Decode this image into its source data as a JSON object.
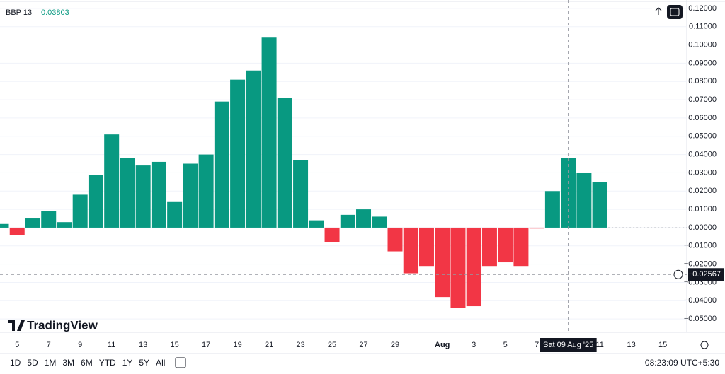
{
  "chart_data": {
    "type": "bar",
    "indicator": "BBP 13",
    "categories": [
      null,
      "5",
      null,
      "7",
      null,
      "9",
      null,
      "11",
      null,
      "13",
      null,
      "15",
      null,
      "17",
      null,
      "19",
      null,
      "21",
      null,
      "23",
      null,
      "25",
      null,
      "27",
      null,
      "29",
      null,
      null,
      "Aug",
      null,
      "3",
      null,
      "5",
      null,
      "7",
      null,
      null,
      null,
      "11",
      null,
      "13",
      null,
      "15"
    ],
    "values": [
      0.002,
      -0.004,
      0.005,
      0.009,
      0.003,
      0.018,
      0.029,
      0.051,
      0.038,
      0.034,
      0.036,
      0.014,
      0.035,
      0.04,
      0.069,
      0.081,
      0.086,
      0.104,
      0.071,
      0.037,
      0.004,
      -0.008,
      0.007,
      0.01,
      0.006,
      -0.013,
      -0.025,
      -0.021,
      -0.038,
      -0.044,
      -0.043,
      -0.021,
      -0.019,
      -0.021,
      -0.0005,
      0.02,
      0.03803,
      0.03,
      0.025,
      null,
      null,
      null,
      null
    ],
    "positive_color": "#089981",
    "negative_color": "#f23645",
    "legend_index": 36,
    "ylim": [
      -0.0573,
      0.1246
    ],
    "yticks": [
      {
        "value": 0.12,
        "label": "0.12000"
      },
      {
        "value": 0.11,
        "label": "0.11000"
      },
      {
        "value": 0.1,
        "label": "0.10000"
      },
      {
        "value": 0.09,
        "label": "0.09000"
      },
      {
        "value": 0.08,
        "label": "0.08000"
      },
      {
        "value": 0.07,
        "label": "0.07000"
      },
      {
        "value": 0.06,
        "label": "0.06000"
      },
      {
        "value": 0.05,
        "label": "0.05000"
      },
      {
        "value": 0.04,
        "label": "0.04000"
      },
      {
        "value": 0.03,
        "label": "0.03000"
      },
      {
        "value": 0.02,
        "label": "0.02000"
      },
      {
        "value": 0.01,
        "label": "0.01000"
      },
      {
        "value": 0,
        "label": "0.00000"
      },
      {
        "value": -0.01,
        "label": "−0.01000"
      },
      {
        "value": -0.02,
        "label": "−0.02000"
      },
      {
        "value": -0.03,
        "label": "−0.03000"
      },
      {
        "value": -0.04,
        "label": "−0.04000"
      },
      {
        "value": -0.05,
        "label": "−0.05000"
      }
    ],
    "grid": true,
    "crosshair": {
      "index": 36,
      "x_label": "Sat 09 Aug '25",
      "y": {
        "value": -0.02567,
        "label": "−0.02567"
      }
    }
  },
  "brand": "TradingView",
  "toolbar": [
    "1D",
    "5D",
    "1M",
    "3M",
    "6M",
    "YTD",
    "1Y",
    "5Y",
    "All"
  ],
  "clock": "08:23:09 UTC+5:30"
}
